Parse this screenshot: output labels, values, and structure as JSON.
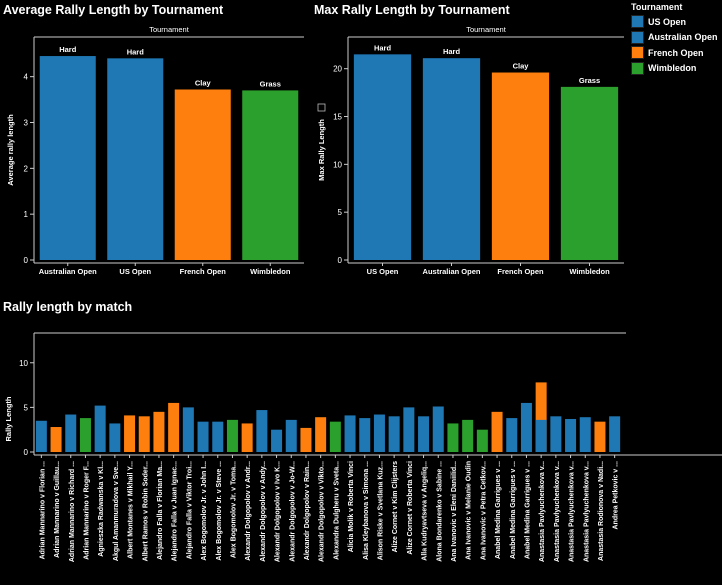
{
  "titles": {
    "avg": "Average Rally Length by Tournament",
    "max": "Max Rally Length by Tournament",
    "match": "Rally length by match"
  },
  "legend": {
    "title": "Tournament",
    "items": [
      {
        "label": "US Open",
        "color": "#1f77b4"
      },
      {
        "label": "Australian Open",
        "color": "#1f77b4"
      },
      {
        "label": "French Open",
        "color": "#ff7f0e"
      },
      {
        "label": "Wimbledon",
        "color": "#2ca02c"
      }
    ]
  },
  "colors": {
    "hard": "#1f77b4",
    "clay": "#ff7f0e",
    "grass": "#2ca02c",
    "axis": "#cccccc"
  },
  "chart_data": [
    {
      "type": "bar",
      "title": "Average Rally Length by Tournament",
      "top_label": "Tournament",
      "categories": [
        "Australian Open",
        "US Open",
        "French Open",
        "Wimbledon"
      ],
      "values": [
        4.45,
        4.4,
        3.72,
        3.7
      ],
      "surfaces": [
        "Hard",
        "Hard",
        "Clay",
        "Grass"
      ],
      "ylabel": "Average rally length",
      "ylim": [
        0,
        4.8
      ],
      "yticks": [
        0,
        1,
        2,
        3,
        4
      ]
    },
    {
      "type": "bar",
      "title": "Max Rally Length by Tournament",
      "top_label": "Tournament",
      "categories": [
        "US Open",
        "Australian Open",
        "French Open",
        "Wimbledon"
      ],
      "values": [
        21.5,
        21.1,
        19.6,
        18.1
      ],
      "surfaces": [
        "Hard",
        "Hard",
        "Clay",
        "Grass"
      ],
      "ylabel": "Max Rally Length",
      "ylim": [
        0,
        23
      ],
      "yticks": [
        0,
        5,
        10,
        15,
        20
      ]
    },
    {
      "type": "bar",
      "title": "Rally length by match",
      "ylabel": "Rally Length",
      "ylim": [
        0,
        13
      ],
      "yticks": [
        0,
        5,
        10
      ],
      "categories": [
        "Adrian Mannarino v Florian ...",
        "Adrian Mannarino v Guillau...",
        "Adrian Mannarino v Richard ...",
        "Adrian Mannarino v Roger F...",
        "Agnieszka Radwanska v Kl...",
        "Akgul Amanmuradova v Sve...",
        "Albert Montanes v Mikhail Y...",
        "Albert Ramos v Robin Soder...",
        "Alejandro Falla v Florian Ma...",
        "Alejandro Falla v Juan Ignac...",
        "Alejandro Falla v Viktor Troi...",
        "Alex Bogomolov Jr. v John I...",
        "Alex Bogomolov Jr. v Steve ...",
        "Alex Bogomolov Jr. v Toma...",
        "Alexandr Dolgopolov v Andr...",
        "Alexandr Dolgopolov v Andy...",
        "Alexandr Dolgopolov v Ivo K...",
        "Alexandr Dolgopolov v Jo-W...",
        "Alexandr Dolgopolov v Rain...",
        "Alexandr Dolgopolov v Vikto...",
        "Alexandra Dulgheru v Sveta...",
        "Alicia Molik v Roberta Vinci",
        "Alisa Kleybanova v Simona ...",
        "Alison Riske v Svetlana Kuz...",
        "Alize Cornet v Kim Clijsters",
        "Alize Cornet v Roberta Vinci",
        "Alla Kudryavtseva v Angeliq...",
        "Alona Bondarenko v Sabine ...",
        "Ana Ivanovic v Eleni Daniilid...",
        "Ana Ivanovic v Melanie Oudin",
        "Ana Ivanovic v Petra Cetkov...",
        "Anabel Medina Garrigues v ...",
        "Anabel Medina Garrigues v ...",
        "Anabel Medina Garrigues v ...",
        "Anastasia Pavlyuchenkova v...",
        "Anastasia Pavlyuchenkova v...",
        "Anastasia Pavlyuchenkova v...",
        "Anastasia Pavlyuchenkova v...",
        "Anastasia Rodionova v Nadi...",
        "Andrea Petkovic v ..."
      ],
      "series": [
        {
          "values": [
            3.5,
            2.8,
            4.2,
            3.8,
            5.2,
            3.2,
            4.1,
            4.0,
            4.5,
            5.5,
            5.0,
            3.4,
            3.4,
            3.6,
            3.2,
            4.7,
            2.5,
            3.6,
            2.7,
            3.9,
            3.4,
            4.1,
            3.8,
            4.2,
            4.0,
            5.0,
            4.0,
            5.1,
            3.2,
            3.6,
            2.5,
            4.5,
            3.8,
            5.5,
            7.8,
            4.0,
            3.7,
            3.9,
            3.4,
            4.0
          ]
        }
      ],
      "surfaces": [
        "Hard",
        "Clay",
        "Hard",
        "Grass",
        "Hard",
        "Hard",
        "Clay",
        "Clay",
        "Clay",
        "Clay",
        "Hard",
        "Hard",
        "Hard",
        "Grass",
        "Clay",
        "Hard",
        "Hard",
        "Hard",
        "Clay",
        "Clay",
        "Grass",
        "Hard",
        "Hard",
        "Hard",
        "Hard",
        "Hard",
        "Hard",
        "Hard",
        "Grass",
        "Grass",
        "Grass",
        "Clay",
        "Hard",
        "Hard",
        "Clay",
        "Hard",
        "Hard",
        "Hard",
        "Clay",
        "Hard"
      ],
      "overlay": [
        {
          "index": 34,
          "value": 3.6,
          "surface": "Hard"
        }
      ]
    }
  ]
}
